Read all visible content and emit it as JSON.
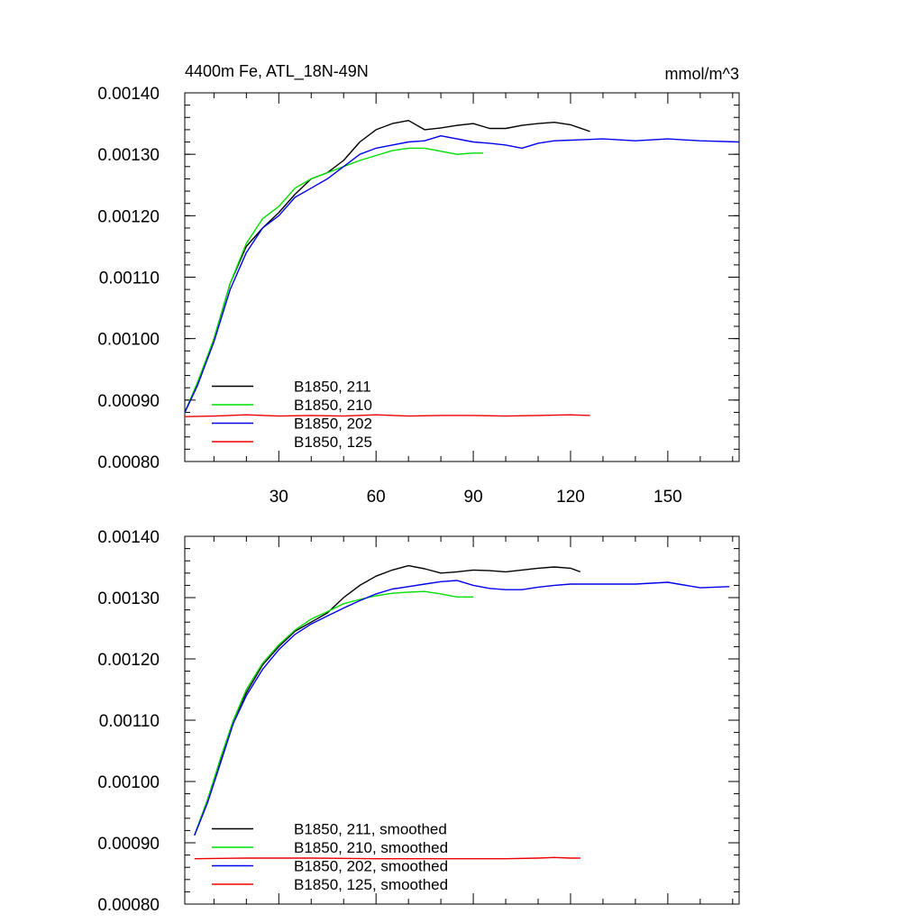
{
  "chart_data": [
    {
      "type": "line",
      "title": "4400m Fe, ATL_18N-49N",
      "units": "mmol/m^3",
      "xlim": [
        1,
        172
      ],
      "ylim": [
        0.0008,
        0.0014
      ],
      "xticks": [
        30,
        60,
        90,
        120,
        150
      ],
      "xtick_labels": [
        "30",
        "60",
        "90",
        "120",
        "150"
      ],
      "yticks": [
        0.0008,
        0.0009,
        0.001,
        0.0011,
        0.0012,
        0.0013,
        0.0014
      ],
      "ytick_labels": [
        "0.00080",
        "0.00090",
        "0.00100",
        "0.00110",
        "0.00120",
        "0.00130",
        "0.00140"
      ],
      "legend_position": "lower-left",
      "series": [
        {
          "name": "B1850, 211",
          "color": "#000000",
          "x": [
            1,
            5,
            10,
            15,
            20,
            25,
            30,
            35,
            40,
            45,
            50,
            55,
            60,
            65,
            70,
            75,
            80,
            85,
            90,
            95,
            100,
            105,
            110,
            115,
            120,
            126
          ],
          "y": [
            0.00088,
            0.000925,
            0.001,
            0.00109,
            0.00115,
            0.00118,
            0.001205,
            0.001235,
            0.00126,
            0.00127,
            0.00129,
            0.00132,
            0.00134,
            0.00135,
            0.001355,
            0.00134,
            0.001343,
            0.001347,
            0.00135,
            0.001342,
            0.001342,
            0.001347,
            0.00135,
            0.001352,
            0.001348,
            0.001337
          ]
        },
        {
          "name": "B1850, 210",
          "color": "#00dd00",
          "x": [
            1,
            5,
            10,
            15,
            20,
            25,
            30,
            35,
            40,
            45,
            50,
            55,
            60,
            65,
            70,
            75,
            80,
            85,
            90,
            93
          ],
          "y": [
            0.00088,
            0.00093,
            0.001,
            0.00109,
            0.001155,
            0.001195,
            0.001215,
            0.001245,
            0.00126,
            0.00127,
            0.00128,
            0.00129,
            0.001298,
            0.001306,
            0.00131,
            0.00131,
            0.001305,
            0.0013,
            0.001302,
            0.001302
          ]
        },
        {
          "name": "B1850, 202",
          "color": "#0000ee",
          "x": [
            1,
            5,
            10,
            15,
            20,
            25,
            30,
            35,
            40,
            45,
            50,
            55,
            60,
            65,
            70,
            75,
            80,
            85,
            90,
            95,
            100,
            105,
            110,
            115,
            120,
            130,
            140,
            150,
            160,
            172
          ],
          "y": [
            0.00088,
            0.000925,
            0.000995,
            0.00108,
            0.00114,
            0.00118,
            0.0012,
            0.00123,
            0.001245,
            0.00126,
            0.00128,
            0.0013,
            0.00131,
            0.001315,
            0.00132,
            0.001322,
            0.00133,
            0.001325,
            0.00132,
            0.001318,
            0.001315,
            0.00131,
            0.001318,
            0.001322,
            0.001323,
            0.001325,
            0.001322,
            0.001325,
            0.001322,
            0.00132
          ]
        },
        {
          "name": "B1850, 125",
          "color": "#ee0000",
          "x": [
            1,
            10,
            20,
            30,
            40,
            50,
            60,
            70,
            80,
            90,
            100,
            110,
            120,
            126
          ],
          "y": [
            0.000873,
            0.000874,
            0.000876,
            0.000874,
            0.000875,
            0.000874,
            0.000876,
            0.000874,
            0.000875,
            0.000875,
            0.000874,
            0.000875,
            0.000876,
            0.000875
          ]
        }
      ]
    },
    {
      "type": "line",
      "title": "",
      "units": "",
      "xlim": [
        1,
        172
      ],
      "ylim": [
        0.0008,
        0.0014
      ],
      "xticks": [
        30,
        60,
        90,
        120,
        150
      ],
      "xtick_labels": [],
      "yticks": [
        0.0008,
        0.0009,
        0.001,
        0.0011,
        0.0012,
        0.0013,
        0.0014
      ],
      "ytick_labels": [
        "0.00080",
        "0.00090",
        "0.00100",
        "0.00110",
        "0.00120",
        "0.00130",
        "0.00140"
      ],
      "legend_position": "lower-left",
      "series": [
        {
          "name": "B1850, 211, smoothed",
          "color": "#000000",
          "x": [
            4,
            8,
            12,
            16,
            20,
            25,
            30,
            35,
            40,
            45,
            50,
            55,
            60,
            65,
            70,
            75,
            80,
            85,
            90,
            95,
            100,
            105,
            110,
            115,
            120,
            123
          ],
          "y": [
            0.000912,
            0.00097,
            0.001035,
            0.0011,
            0.001145,
            0.00119,
            0.00122,
            0.001245,
            0.00126,
            0.001275,
            0.0013,
            0.00132,
            0.001335,
            0.001345,
            0.001352,
            0.001347,
            0.00134,
            0.001342,
            0.001345,
            0.001344,
            0.001342,
            0.001345,
            0.001348,
            0.00135,
            0.001348,
            0.001342
          ]
        },
        {
          "name": "B1850, 210, smoothed",
          "color": "#00dd00",
          "x": [
            4,
            8,
            12,
            16,
            20,
            25,
            30,
            35,
            40,
            45,
            50,
            55,
            60,
            65,
            70,
            75,
            80,
            85,
            90
          ],
          "y": [
            0.000912,
            0.00097,
            0.001038,
            0.0011,
            0.00115,
            0.001193,
            0.001223,
            0.001247,
            0.001265,
            0.001277,
            0.00129,
            0.001297,
            0.001303,
            0.001307,
            0.001309,
            0.00131,
            0.001306,
            0.001301,
            0.001301
          ]
        },
        {
          "name": "B1850, 202, smoothed",
          "color": "#0000ee",
          "x": [
            4,
            8,
            12,
            16,
            20,
            25,
            30,
            35,
            40,
            45,
            50,
            55,
            60,
            65,
            70,
            75,
            80,
            85,
            90,
            95,
            100,
            105,
            110,
            115,
            120,
            130,
            140,
            150,
            160,
            169
          ],
          "y": [
            0.000912,
            0.000965,
            0.00103,
            0.001095,
            0.00114,
            0.001183,
            0.001215,
            0.00124,
            0.001257,
            0.00127,
            0.001283,
            0.001295,
            0.001306,
            0.001314,
            0.001318,
            0.001322,
            0.001326,
            0.001328,
            0.00132,
            0.001315,
            0.001313,
            0.001313,
            0.001317,
            0.00132,
            0.001322,
            0.001322,
            0.001322,
            0.001325,
            0.001316,
            0.001318
          ]
        },
        {
          "name": "B1850, 125, smoothed",
          "color": "#ee0000",
          "x": [
            4,
            20,
            40,
            60,
            80,
            100,
            110,
            115,
            120,
            123
          ],
          "y": [
            0.000874,
            0.000875,
            0.000875,
            0.000874,
            0.000874,
            0.000874,
            0.000875,
            0.000876,
            0.000875,
            0.000875
          ]
        }
      ]
    }
  ]
}
